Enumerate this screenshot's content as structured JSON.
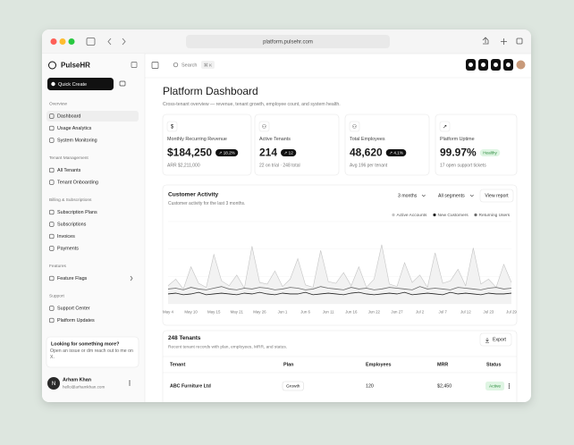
{
  "browser": {
    "url": "platform.pulsehr.com"
  },
  "sidebar": {
    "brand": "PulseHR",
    "quick_create": "Quick Create",
    "sections": [
      {
        "title": "Overview",
        "items": [
          "Dashboard",
          "Usage Analytics",
          "System Monitoring"
        ]
      },
      {
        "title": "Tenant Management",
        "items": [
          "All Tenants",
          "Tenant Onboarding"
        ]
      },
      {
        "title": "Billing & Subscriptions",
        "items": [
          "Subscription Plans",
          "Subscriptions",
          "Invoices",
          "Payments"
        ]
      },
      {
        "title": "Features",
        "items": [
          "Feature Flags"
        ]
      },
      {
        "title": "Support",
        "items": [
          "Support Center",
          "Platform Updates"
        ]
      }
    ],
    "help": {
      "title": "Looking for something more?",
      "text": "Open an issue or dm reach out to me on X."
    },
    "user": {
      "initial": "N",
      "name": "Arham Khan",
      "email": "hello@arhamkhan.com"
    }
  },
  "topbar": {
    "search": "Search",
    "shortcut": "⌘ K"
  },
  "header": {
    "title": "Platform Dashboard",
    "subtitle": "Cross-tenant overview — revenue, tenant growth, employee count, and system health."
  },
  "kpis": [
    {
      "icon": "$",
      "label": "Monthly Recurring Revenue",
      "value": "$184,250",
      "badge": "↗ 18.2%",
      "note": "ARR $2,211,000"
    },
    {
      "icon": "⚇",
      "label": "Active Tenants",
      "value": "214",
      "badge": "↗ 12",
      "note": "22 on trial · 248 total"
    },
    {
      "icon": "⚇",
      "label": "Total Employees",
      "value": "48,620",
      "badge": "↗ 4.1%",
      "note": "Avg 196 per tenant"
    },
    {
      "icon": "↗",
      "label": "Platform Uptime",
      "value": "99.97%",
      "badge": "Healthy",
      "note": "17 open support tickets"
    }
  ],
  "chart_data": {
    "type": "line",
    "title": "Customer Activity",
    "subtitle": "Customer activity for the last 3 months.",
    "controls": [
      "3 months",
      "All segments",
      "View report"
    ],
    "categories": [
      "May 4",
      null,
      null,
      "May 10",
      null,
      null,
      "May 15",
      null,
      null,
      "May 21",
      null,
      null,
      "May 26",
      null,
      null,
      "Jun 1",
      null,
      null,
      "Jun 6",
      null,
      null,
      "Jun 11",
      null,
      null,
      "Jun 16",
      null,
      null,
      "Jun 22",
      null,
      null,
      "Jun 27",
      null,
      null,
      "Jul 2",
      null,
      null,
      "Jul 7",
      null,
      null,
      "Jul 12",
      null,
      null,
      "Jul 23",
      null,
      null,
      "Jul 29"
    ],
    "ylim": [
      0,
      100
    ],
    "series": [
      {
        "name": "Active Accounts",
        "color": "#c4c4c4",
        "values": [
          22,
          30,
          18,
          45,
          25,
          20,
          60,
          28,
          22,
          35,
          19,
          70,
          26,
          24,
          40,
          21,
          30,
          55,
          23,
          20,
          65,
          27,
          25,
          38,
          22,
          45,
          20,
          30,
          72,
          24,
          21,
          50,
          26,
          35,
          20,
          62,
          25,
          28,
          42,
          22,
          68,
          24,
          30,
          20,
          48,
          26
        ]
      },
      {
        "name": "New Customers",
        "color": "#222222",
        "values": [
          12,
          13,
          11,
          12,
          14,
          11,
          12,
          13,
          12,
          11,
          13,
          12,
          14,
          12,
          11,
          13,
          12,
          12,
          14,
          11,
          12,
          13,
          12,
          11,
          13,
          14,
          12,
          11,
          12,
          13,
          12,
          14,
          11,
          12,
          13,
          12,
          11,
          14,
          12,
          13,
          12,
          11,
          13,
          12,
          12,
          13
        ]
      },
      {
        "name": "Returning Users",
        "color": "#6a6a6a",
        "values": [
          18,
          19,
          17,
          20,
          18,
          17,
          19,
          21,
          18,
          17,
          19,
          18,
          20,
          19,
          17,
          18,
          20,
          19,
          17,
          18,
          21,
          19,
          18,
          17,
          20,
          18,
          19,
          17,
          18,
          20,
          19,
          18,
          17,
          21,
          18,
          19,
          18,
          17,
          20,
          19,
          18,
          17,
          19,
          20,
          18,
          19
        ]
      }
    ]
  },
  "table": {
    "title": "248 Tenants",
    "subtitle": "Recent tenant records with plan, employees, MRR, and status.",
    "export": "Export",
    "columns": [
      "Tenant",
      "Plan",
      "Employees",
      "MRR",
      "Status"
    ],
    "rows": [
      [
        "ABC Furniture Ltd",
        "Growth",
        "120",
        "$2,450",
        "Active"
      ]
    ]
  }
}
